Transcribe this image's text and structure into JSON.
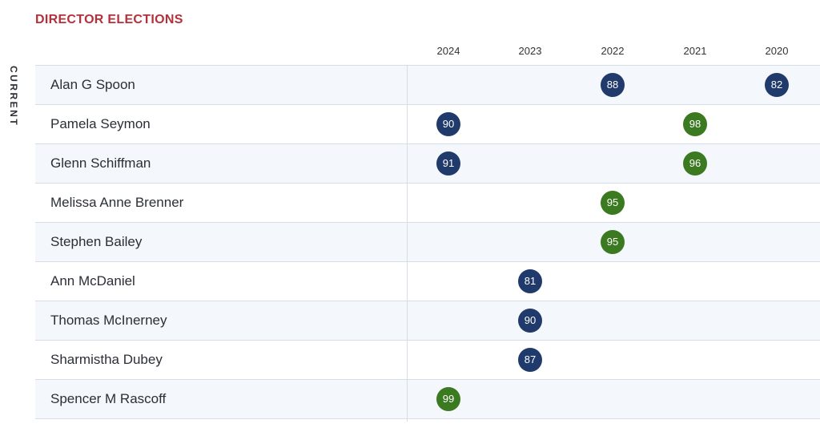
{
  "title": "DIRECTOR ELECTIONS",
  "section_label": "CURRENT",
  "years": [
    "2024",
    "2023",
    "2022",
    "2021",
    "2020"
  ],
  "colors": {
    "blue": "#1f3a6b",
    "green": "#3b7a20",
    "title_red": "#b5303a"
  },
  "directors": [
    {
      "name": "Alan G Spoon",
      "votes": [
        {
          "year": "2022",
          "value": "88",
          "color": "blue"
        },
        {
          "year": "2020",
          "value": "82",
          "color": "blue"
        }
      ]
    },
    {
      "name": "Pamela Seymon",
      "votes": [
        {
          "year": "2024",
          "value": "90",
          "color": "blue"
        },
        {
          "year": "2021",
          "value": "98",
          "color": "green"
        }
      ]
    },
    {
      "name": "Glenn Schiffman",
      "votes": [
        {
          "year": "2024",
          "value": "91",
          "color": "blue"
        },
        {
          "year": "2021",
          "value": "96",
          "color": "green"
        }
      ]
    },
    {
      "name": "Melissa Anne Brenner",
      "votes": [
        {
          "year": "2022",
          "value": "95",
          "color": "green"
        }
      ]
    },
    {
      "name": "Stephen Bailey",
      "votes": [
        {
          "year": "2022",
          "value": "95",
          "color": "green"
        }
      ]
    },
    {
      "name": "Ann McDaniel",
      "votes": [
        {
          "year": "2023",
          "value": "81",
          "color": "blue"
        }
      ]
    },
    {
      "name": "Thomas McInerney",
      "votes": [
        {
          "year": "2023",
          "value": "90",
          "color": "blue"
        }
      ]
    },
    {
      "name": "Sharmistha Dubey",
      "votes": [
        {
          "year": "2023",
          "value": "87",
          "color": "blue"
        }
      ]
    },
    {
      "name": "Spencer M Rascoff",
      "votes": [
        {
          "year": "2024",
          "value": "99",
          "color": "green"
        }
      ]
    }
  ]
}
